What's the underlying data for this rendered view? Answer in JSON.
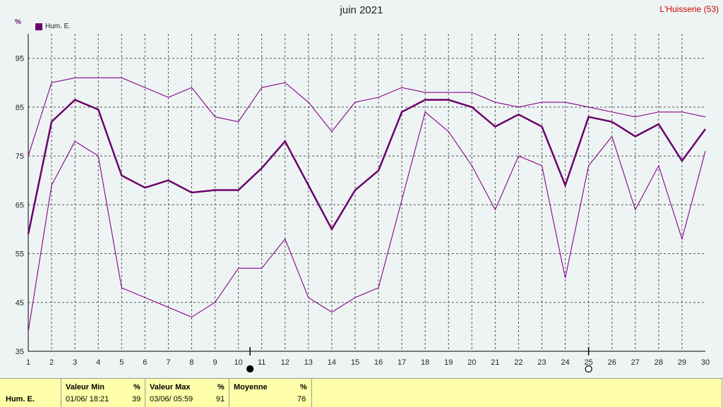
{
  "header": {
    "title": "juin 2021",
    "station": "L'Huisserie (53)",
    "unit": "%"
  },
  "legend": {
    "label": "Hum. E.",
    "color": "#6a006a"
  },
  "chart_data": {
    "type": "line",
    "title": "juin 2021",
    "x": [
      1,
      2,
      3,
      4,
      5,
      6,
      7,
      8,
      9,
      10,
      11,
      12,
      13,
      14,
      15,
      16,
      17,
      18,
      19,
      20,
      21,
      22,
      23,
      24,
      25,
      26,
      27,
      28,
      29,
      30
    ],
    "xlim": [
      1,
      30
    ],
    "ylim": [
      35,
      100
    ],
    "yticks": [
      35,
      45,
      55,
      65,
      75,
      85,
      95
    ],
    "grid": true,
    "legend_position": "top-left",
    "series": [
      {
        "name": "Hum. E.",
        "role": "mean",
        "color": "#6a006a",
        "values": [
          59,
          82,
          86.5,
          84.5,
          71,
          68.5,
          70,
          67.5,
          68,
          68,
          72.5,
          78,
          69,
          60,
          68,
          72,
          84,
          86.5,
          86.5,
          85,
          81,
          83.5,
          81,
          69,
          83,
          82,
          79,
          81.5,
          74,
          80.5
        ]
      },
      {
        "role": "max",
        "color": "#8a008a",
        "values": [
          75,
          90,
          91,
          91,
          91,
          89,
          87,
          89,
          83,
          82,
          89,
          90,
          86,
          80,
          86,
          87,
          89,
          88,
          88,
          88,
          86,
          85,
          86,
          86,
          85,
          84,
          83,
          84,
          84,
          83
        ]
      },
      {
        "role": "min",
        "color": "#8a008a",
        "values": [
          39,
          69,
          78,
          75,
          48,
          46,
          44,
          42,
          45,
          52,
          52,
          58,
          46,
          43,
          46,
          48,
          66,
          84,
          80,
          73,
          64,
          75,
          73,
          50,
          73,
          79,
          64,
          73,
          58,
          76
        ]
      }
    ],
    "markers": [
      {
        "x": 10.5,
        "type": "filled-circle"
      },
      {
        "x": 25,
        "type": "open-circle"
      }
    ]
  },
  "summary": {
    "row_label": "Hum. E.",
    "unit": "%",
    "min_header": "Valeur Min",
    "min_when": "01/06/ 18:21",
    "min_value": "39",
    "max_header": "Valeur Max",
    "max_when": "03/06/ 05:59",
    "max_value": "91",
    "avg_header": "Moyenne",
    "avg_value": "76"
  }
}
